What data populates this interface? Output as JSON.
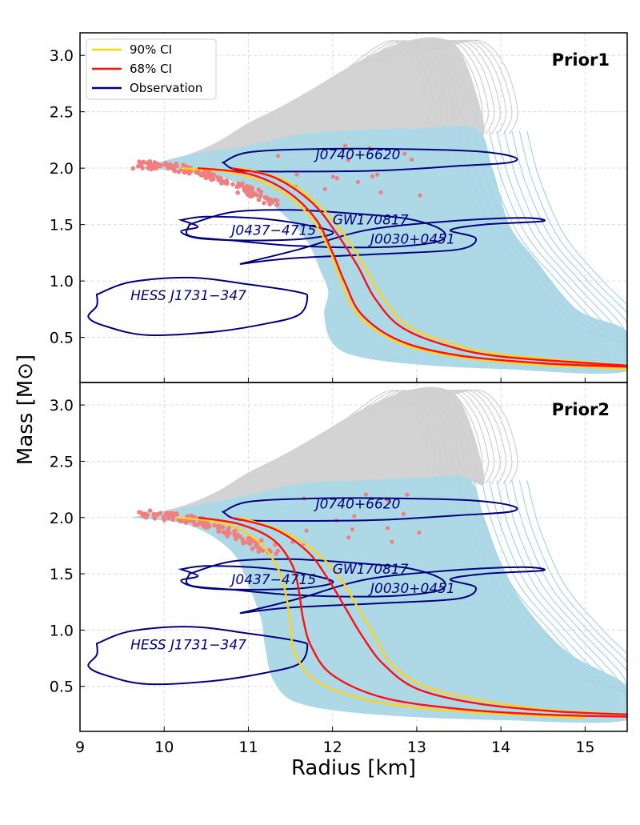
{
  "figure": {
    "xlabel": "Radius [km]",
    "ylabel": "Mass [M⊙]"
  },
  "legend": {
    "location": "upper-left of top panel",
    "entries": [
      {
        "label": "90% CI",
        "color": "#FFD31A"
      },
      {
        "label": "68% CI",
        "color": "#FF1010"
      },
      {
        "label": "Observation",
        "color": "#000080"
      }
    ]
  },
  "colors": {
    "prior_band": "#D3D3D3",
    "posterior_band": "#ADD8E6",
    "max_mass_points": "#F08080",
    "ci90": "#FFD31A",
    "ci68": "#FF1010",
    "observation": "#000080",
    "grid": "#DDDDDD"
  },
  "chart_data": [
    {
      "type": "line",
      "panel_title": "Prior1",
      "xlim": [
        9,
        15.5
      ],
      "ylim": [
        0.1,
        3.2
      ],
      "xticks": [
        9,
        10,
        11,
        12,
        13,
        14,
        15
      ],
      "yticks": [
        0.5,
        1.0,
        1.5,
        2.0,
        2.5,
        3.0
      ],
      "xtick_labels": [
        "9",
        "10",
        "11",
        "12",
        "13",
        "14",
        "15"
      ],
      "ytick_labels": [
        "0.5",
        "1.0",
        "1.5",
        "2.0",
        "2.5",
        "3.0"
      ],
      "grid": true,
      "series": [
        {
          "name": "90% CI",
          "band": "lower",
          "x": [
            10.2,
            10.8,
            11.3,
            11.7,
            11.95,
            12.1,
            12.3,
            12.7,
            13.3,
            14.2,
            15.5
          ],
          "y": [
            2.0,
            1.96,
            1.83,
            1.6,
            1.3,
            1.0,
            0.7,
            0.48,
            0.35,
            0.27,
            0.22
          ]
        },
        {
          "name": "90% CI",
          "band": "upper",
          "x": [
            10.9,
            11.4,
            11.8,
            12.15,
            12.4,
            12.6,
            12.9,
            13.4,
            14.0,
            15.5
          ],
          "y": [
            2.0,
            1.9,
            1.7,
            1.4,
            1.1,
            0.85,
            0.6,
            0.45,
            0.35,
            0.25
          ]
        },
        {
          "name": "68% CI",
          "band": "lower",
          "x": [
            10.4,
            11.0,
            11.45,
            11.8,
            12.0,
            12.15,
            12.35,
            12.8,
            13.5,
            14.5,
            15.5
          ],
          "y": [
            2.0,
            1.95,
            1.8,
            1.55,
            1.25,
            0.98,
            0.7,
            0.47,
            0.34,
            0.27,
            0.24
          ]
        },
        {
          "name": "68% CI",
          "band": "upper",
          "x": [
            10.8,
            11.3,
            11.75,
            12.05,
            12.3,
            12.5,
            12.8,
            13.3,
            14.0,
            15.5
          ],
          "y": [
            2.0,
            1.92,
            1.7,
            1.42,
            1.13,
            0.85,
            0.6,
            0.44,
            0.33,
            0.25
          ]
        }
      ],
      "observations": [
        {
          "label": "J0740+6620",
          "label_x": 11.8,
          "label_y": 2.08
        },
        {
          "label": "GW170817",
          "label_x": 12.0,
          "label_y": 1.5
        },
        {
          "label": "J0437−4715",
          "label_x": 10.8,
          "label_y": 1.41
        },
        {
          "label": "J0030+0451",
          "label_x": 12.45,
          "label_y": 1.33
        },
        {
          "label": "HESS J1731−347",
          "label_x": 9.6,
          "label_y": 0.83
        }
      ]
    },
    {
      "type": "line",
      "panel_title": "Prior2",
      "xlim": [
        9,
        15.5
      ],
      "ylim": [
        0.1,
        3.2
      ],
      "xticks": [
        9,
        10,
        11,
        12,
        13,
        14,
        15
      ],
      "yticks": [
        0.5,
        1.0,
        1.5,
        2.0,
        2.5,
        3.0
      ],
      "xtick_labels": [
        "9",
        "10",
        "11",
        "12",
        "13",
        "14",
        "15"
      ],
      "ytick_labels": [
        "0.5",
        "1.0",
        "1.5",
        "2.0",
        "2.5",
        "3.0"
      ],
      "grid": true,
      "series": [
        {
          "name": "90% CI",
          "band": "lower",
          "x": [
            10.15,
            10.7,
            11.1,
            11.35,
            11.45,
            11.5,
            11.55,
            11.8,
            12.4,
            13.3,
            14.4,
            15.0
          ],
          "y": [
            2.0,
            1.95,
            1.8,
            1.55,
            1.3,
            1.05,
            0.8,
            0.55,
            0.38,
            0.29,
            0.24,
            0.22
          ]
        },
        {
          "name": "90% CI",
          "band": "upper",
          "x": [
            10.9,
            11.4,
            11.8,
            12.1,
            12.3,
            12.5,
            12.7,
            13.1,
            13.8,
            14.6,
            15.5
          ],
          "y": [
            2.0,
            1.88,
            1.7,
            1.45,
            1.2,
            0.95,
            0.7,
            0.5,
            0.37,
            0.29,
            0.25
          ]
        },
        {
          "name": "68% CI",
          "band": "lower",
          "x": [
            10.4,
            10.9,
            11.3,
            11.52,
            11.6,
            11.65,
            11.75,
            12.0,
            12.6,
            13.5,
            14.5,
            15.5
          ],
          "y": [
            2.0,
            1.94,
            1.8,
            1.58,
            1.35,
            1.1,
            0.85,
            0.6,
            0.4,
            0.3,
            0.25,
            0.23
          ]
        },
        {
          "name": "68% CI",
          "band": "upper",
          "x": [
            10.8,
            11.3,
            11.7,
            11.95,
            12.15,
            12.35,
            12.6,
            13.0,
            13.7,
            14.6,
            15.5
          ],
          "y": [
            2.0,
            1.9,
            1.7,
            1.45,
            1.2,
            0.95,
            0.7,
            0.48,
            0.35,
            0.28,
            0.25
          ]
        }
      ],
      "observations": [
        {
          "label": "J0740+6620",
          "label_x": 11.8,
          "label_y": 2.08
        },
        {
          "label": "GW170817",
          "label_x": 12.0,
          "label_y": 1.5
        },
        {
          "label": "J0437−4715",
          "label_x": 10.8,
          "label_y": 1.41
        },
        {
          "label": "J0030+0451",
          "label_x": 12.45,
          "label_y": 1.33
        },
        {
          "label": "HESS J1731−347",
          "label_x": 9.6,
          "label_y": 0.83
        }
      ]
    }
  ]
}
